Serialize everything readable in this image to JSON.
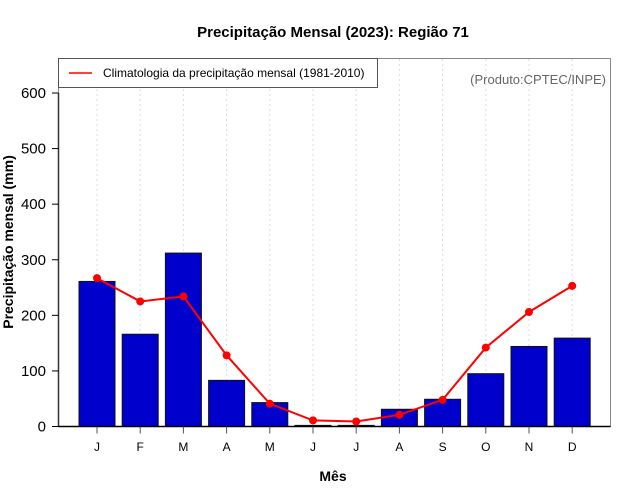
{
  "chart_data": {
    "type": "bar",
    "title": "Precipitação Mensal (2023): Região 71",
    "xlabel": "Mês",
    "ylabel": "Precipitação mensal (mm)",
    "categories": [
      "J",
      "F",
      "M",
      "A",
      "M",
      "J",
      "J",
      "A",
      "S",
      "O",
      "N",
      "D"
    ],
    "ylim": [
      0,
      660
    ],
    "yticks": [
      0,
      100,
      200,
      300,
      400,
      500,
      600
    ],
    "grid": "vertical dotted",
    "series": [
      {
        "name": "Precipitação mensal 2023",
        "kind": "bar",
        "color": "#0000cc",
        "values": [
          261,
          166,
          312,
          83,
          43,
          2,
          2,
          31,
          49,
          95,
          144,
          159
        ]
      },
      {
        "name": "Climatologia da precipitação mensal (1981-2010)",
        "kind": "line",
        "color": "#ff0000",
        "values": [
          267,
          225,
          234,
          128,
          41,
          11,
          9,
          21,
          48,
          142,
          206,
          253
        ]
      }
    ],
    "legend": {
      "position": "top-left",
      "entries": [
        "Climatologia da precipitação mensal (1981-2010)"
      ]
    },
    "annotation": "(Produto:CPTEC/INPE)"
  }
}
